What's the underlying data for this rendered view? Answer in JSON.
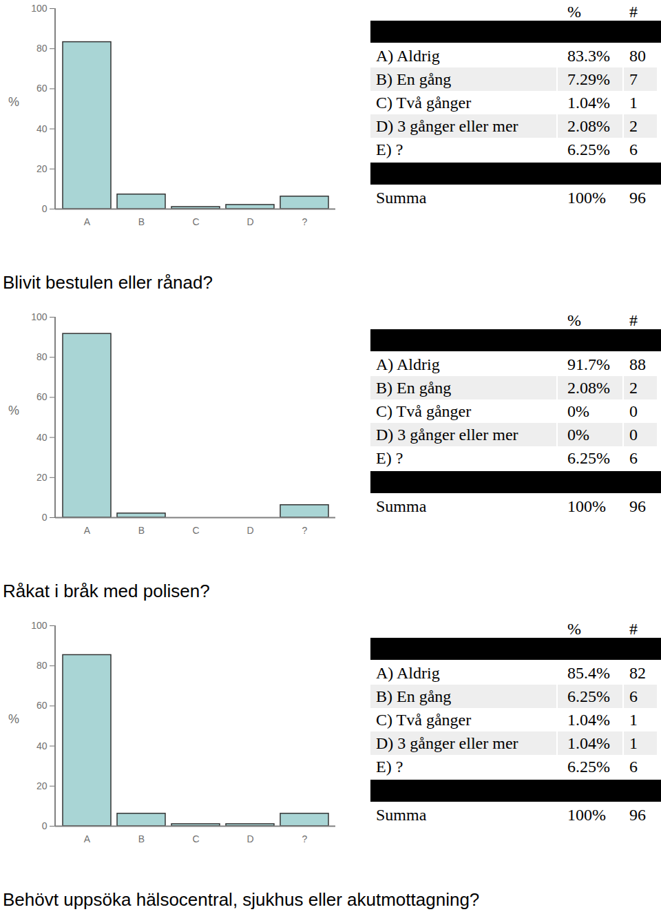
{
  "chart_data": [
    {
      "type": "bar",
      "categories": [
        "A",
        "B",
        "C",
        "D",
        "?"
      ],
      "values": [
        83.3,
        7.29,
        1.04,
        2.08,
        6.25
      ],
      "value_labels": [
        "83.3%",
        "7.29%",
        "1.04%",
        "2.08%",
        "6.25%"
      ],
      "counts": [
        80,
        7,
        1,
        2,
        6
      ],
      "row_labels": [
        "A) Aldrig",
        "B) En gång",
        "C) Två gånger",
        "D) 3 gånger eller mer",
        "E) ?"
      ],
      "column_headers": [
        "%",
        "#"
      ],
      "total": {
        "label": "Summa",
        "value_label": "100%",
        "count": 96
      },
      "y_label": "%",
      "ylim": [
        0,
        100
      ],
      "yticks": [
        0,
        20,
        40,
        60,
        80,
        100
      ],
      "color": "#a9d5d5"
    },
    {
      "type": "bar",
      "title": "Blivit bestulen eller rånad?",
      "categories": [
        "A",
        "B",
        "C",
        "D",
        "?"
      ],
      "values": [
        91.7,
        2.08,
        0,
        0,
        6.25
      ],
      "value_labels": [
        "91.7%",
        "2.08%",
        "0%",
        "0%",
        "6.25%"
      ],
      "counts": [
        88,
        2,
        0,
        0,
        6
      ],
      "row_labels": [
        "A) Aldrig",
        "B) En gång",
        "C) Två gånger",
        "D) 3 gånger eller mer",
        "E) ?"
      ],
      "column_headers": [
        "%",
        "#"
      ],
      "total": {
        "label": "Summa",
        "value_label": "100%",
        "count": 96
      },
      "y_label": "%",
      "ylim": [
        0,
        100
      ],
      "yticks": [
        0,
        20,
        40,
        60,
        80,
        100
      ],
      "color": "#a9d5d5"
    },
    {
      "type": "bar",
      "title": "Råkat i bråk med polisen?",
      "categories": [
        "A",
        "B",
        "C",
        "D",
        "?"
      ],
      "values": [
        85.4,
        6.25,
        1.04,
        1.04,
        6.25
      ],
      "value_labels": [
        "85.4%",
        "6.25%",
        "1.04%",
        "1.04%",
        "6.25%"
      ],
      "counts": [
        82,
        6,
        1,
        1,
        6
      ],
      "row_labels": [
        "A) Aldrig",
        "B) En gång",
        "C) Två gånger",
        "D) 3 gånger eller mer",
        "E) ?"
      ],
      "column_headers": [
        "%",
        "#"
      ],
      "total": {
        "label": "Summa",
        "value_label": "100%",
        "count": 96
      },
      "y_label": "%",
      "ylim": [
        0,
        100
      ],
      "yticks": [
        0,
        20,
        40,
        60,
        80,
        100
      ],
      "color": "#a9d5d5"
    }
  ],
  "page": {
    "next_heading": "Behövt uppsöka hälsocentral, sjukhus eller akutmottagning?"
  }
}
